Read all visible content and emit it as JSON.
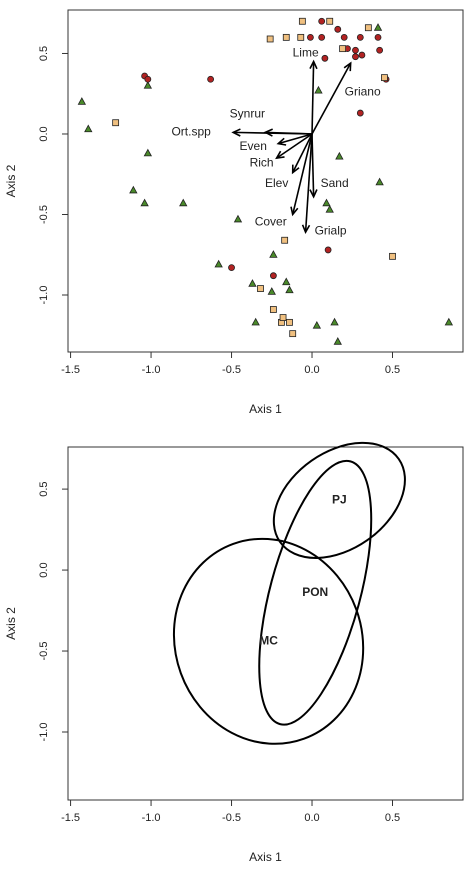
{
  "chart_data": [
    {
      "type": "scatter",
      "x_label": "Axis 1",
      "y_label": "Axis 2",
      "xlim": [
        -1.516,
        0.938
      ],
      "ylim": [
        -1.354,
        0.77
      ],
      "xticks": [
        -1.5,
        {
          "value": -1,
          "label": "-1.0"
        },
        -0.5,
        {
          "value": 0,
          "label": "0.0"
        },
        0.5
      ],
      "yticks": [
        {
          "value": -1,
          "label": "-1.0"
        },
        -0.5,
        {
          "value": 0,
          "label": "0.0"
        },
        0.5
      ],
      "series": [
        {
          "color": "#4a8a2a",
          "marker": "triangle",
          "x": [
            -1.43,
            -1.39,
            -1.02,
            -1.02,
            -1.11,
            -1.04,
            -0.8,
            -0.58,
            -0.46,
            -0.37,
            -0.25,
            -0.35,
            -0.24,
            -0.16,
            -0.14,
            0.04,
            0.17,
            0.09,
            0.11,
            0.42,
            0.03,
            0.14,
            0.16,
            0.85,
            0.41
          ],
          "y": [
            0.2,
            0.03,
            0.3,
            -0.12,
            -0.35,
            -0.43,
            -0.43,
            -0.81,
            -0.53,
            -0.93,
            -0.98,
            -1.17,
            -0.75,
            -0.92,
            -0.97,
            0.27,
            -0.14,
            -0.43,
            -0.47,
            -0.3,
            -1.19,
            -1.17,
            -1.29,
            -1.17,
            0.66
          ]
        },
        {
          "color": "#b22222",
          "marker": "circle",
          "x": [
            -1.04,
            -1.02,
            -0.63,
            -0.5,
            -0.24,
            0.06,
            -0.01,
            0.06,
            0.16,
            0.2,
            0.22,
            0.27,
            0.3,
            0.27,
            0.31,
            0.41,
            0.42,
            0.46,
            0.3,
            0.1,
            0.08
          ],
          "y": [
            0.36,
            0.34,
            0.34,
            -0.83,
            -0.88,
            0.7,
            0.6,
            0.6,
            0.65,
            0.6,
            0.53,
            0.52,
            0.6,
            0.48,
            0.49,
            0.6,
            0.52,
            0.34,
            0.13,
            -0.72,
            0.47
          ]
        },
        {
          "color": "#f0c080",
          "marker": "square",
          "x": [
            -1.22,
            -0.26,
            -0.16,
            -0.07,
            -0.06,
            0.11,
            0.19,
            0.35,
            0.45,
            0.5,
            -0.17,
            -0.32,
            -0.24,
            -0.19,
            -0.12,
            -0.14,
            -0.18
          ],
          "y": [
            0.07,
            0.59,
            0.6,
            0.6,
            0.7,
            0.7,
            0.53,
            0.66,
            0.35,
            -0.76,
            -0.66,
            -0.96,
            -1.09,
            -1.17,
            -1.24,
            -1.17,
            -1.14
          ]
        }
      ],
      "vectors": [
        {
          "label": "Lime",
          "x": 0.01,
          "y": 0.45
        },
        {
          "label": "Griano",
          "x": 0.24,
          "y": 0.44
        },
        {
          "label": "Synrur",
          "x": -0.29,
          "y": 0.01
        },
        {
          "label": "Ort.spp",
          "x": -0.49,
          "y": 0.01
        },
        {
          "label": "Even",
          "x": -0.21,
          "y": -0.06
        },
        {
          "label": "Rich",
          "x": -0.22,
          "y": -0.15
        },
        {
          "label": "Elev",
          "x": -0.12,
          "y": -0.24
        },
        {
          "label": "Sand",
          "x": 0.01,
          "y": -0.39
        },
        {
          "label": "Cover",
          "x": -0.12,
          "y": -0.5
        },
        {
          "label": "Grialp",
          "x": -0.04,
          "y": -0.61
        }
      ]
    },
    {
      "type": "ellipse",
      "x_label": "Axis 1",
      "y_label": "Axis 2",
      "xlim": [
        -1.516,
        0.938
      ],
      "ylim": [
        -1.42,
        0.76
      ],
      "xticks": [
        -1.5,
        {
          "value": -1,
          "label": "-1.0"
        },
        -0.5,
        {
          "value": 0,
          "label": "0.0"
        },
        0.5
      ],
      "yticks": [
        {
          "value": -1,
          "label": "-1.0"
        },
        -0.5,
        {
          "value": 0,
          "label": "0.0"
        },
        0.5
      ],
      "ellipses": [
        {
          "label": "PJ",
          "cx": 0.17,
          "cy": 0.43,
          "rx": 0.45,
          "ry": 0.3,
          "angle": 35
        },
        {
          "label": "PON",
          "cx": 0.02,
          "cy": -0.14,
          "rx": 0.28,
          "ry": 0.84,
          "angle": -15
        },
        {
          "label": "MC",
          "cx": -0.27,
          "cy": -0.44,
          "rx": 0.58,
          "ry": 0.64,
          "angle": 20
        }
      ]
    }
  ]
}
